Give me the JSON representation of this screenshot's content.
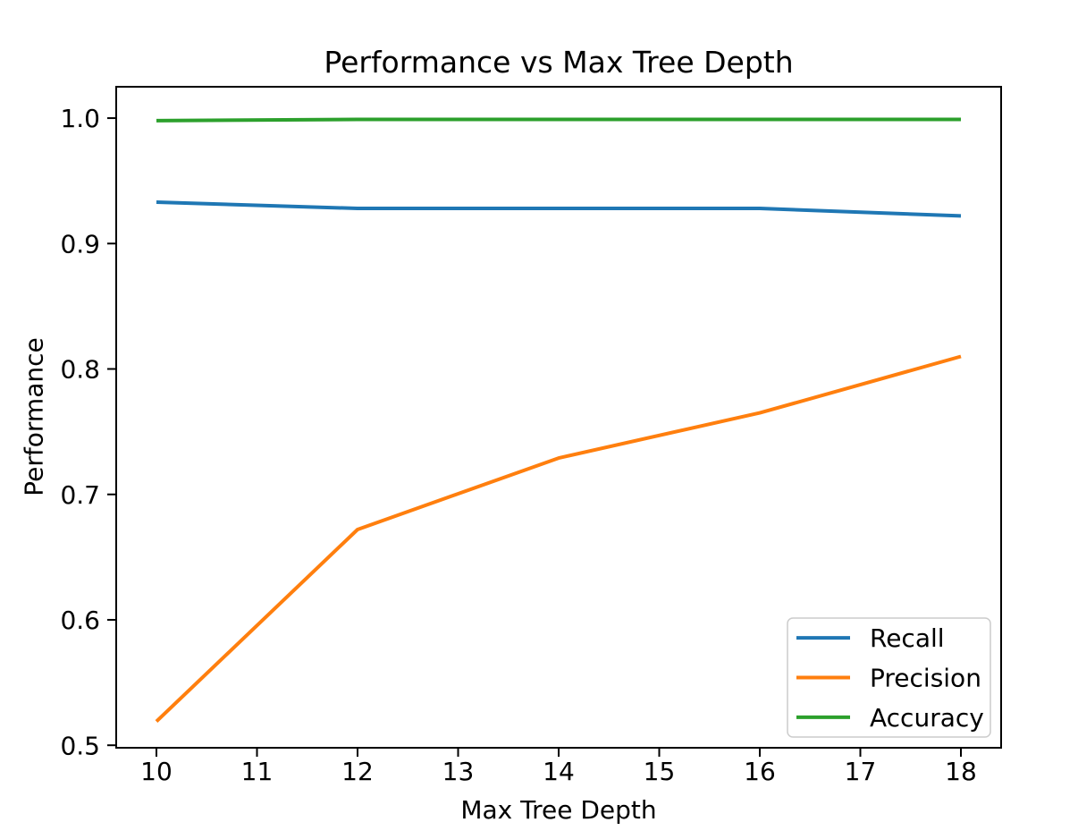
{
  "figure": {
    "title": "Performance vs Max Tree Depth",
    "xlabel": "Max Tree Depth",
    "ylabel": "Performance",
    "background_color": "#ffffff",
    "spine_color": "#000000"
  },
  "chart_data": {
    "type": "line",
    "title": "Performance vs Max Tree Depth",
    "xlabel": "Max Tree Depth",
    "ylabel": "Performance",
    "x": [
      10,
      12,
      14,
      16,
      18
    ],
    "series": [
      {
        "name": "Recall",
        "color": "#1f77b4",
        "values": [
          0.933,
          0.928,
          0.928,
          0.928,
          0.922
        ]
      },
      {
        "name": "Precision",
        "color": "#ff7f0e",
        "values": [
          0.519,
          0.672,
          0.729,
          0.765,
          0.81
        ]
      },
      {
        "name": "Accuracy",
        "color": "#2ca02c",
        "values": [
          0.998,
          0.999,
          0.999,
          0.999,
          0.999
        ]
      }
    ],
    "xticks": [
      10,
      11,
      12,
      13,
      14,
      15,
      16,
      17,
      18
    ],
    "xtick_labels": [
      "10",
      "11",
      "12",
      "13",
      "14",
      "15",
      "16",
      "17",
      "18"
    ],
    "yticks": [
      0.5,
      0.6,
      0.7,
      0.8,
      0.9,
      1.0
    ],
    "ytick_labels": [
      "0.5",
      "0.6",
      "0.7",
      "0.8",
      "0.9",
      "1.0"
    ],
    "xlim": [
      9.6,
      18.4
    ],
    "ylim": [
      0.498,
      1.025
    ],
    "grid": false,
    "legend": {
      "position": "lower right",
      "entries": [
        "Recall",
        "Precision",
        "Accuracy"
      ],
      "border_color": "#cccccc",
      "background_color": "#ffffff"
    }
  }
}
